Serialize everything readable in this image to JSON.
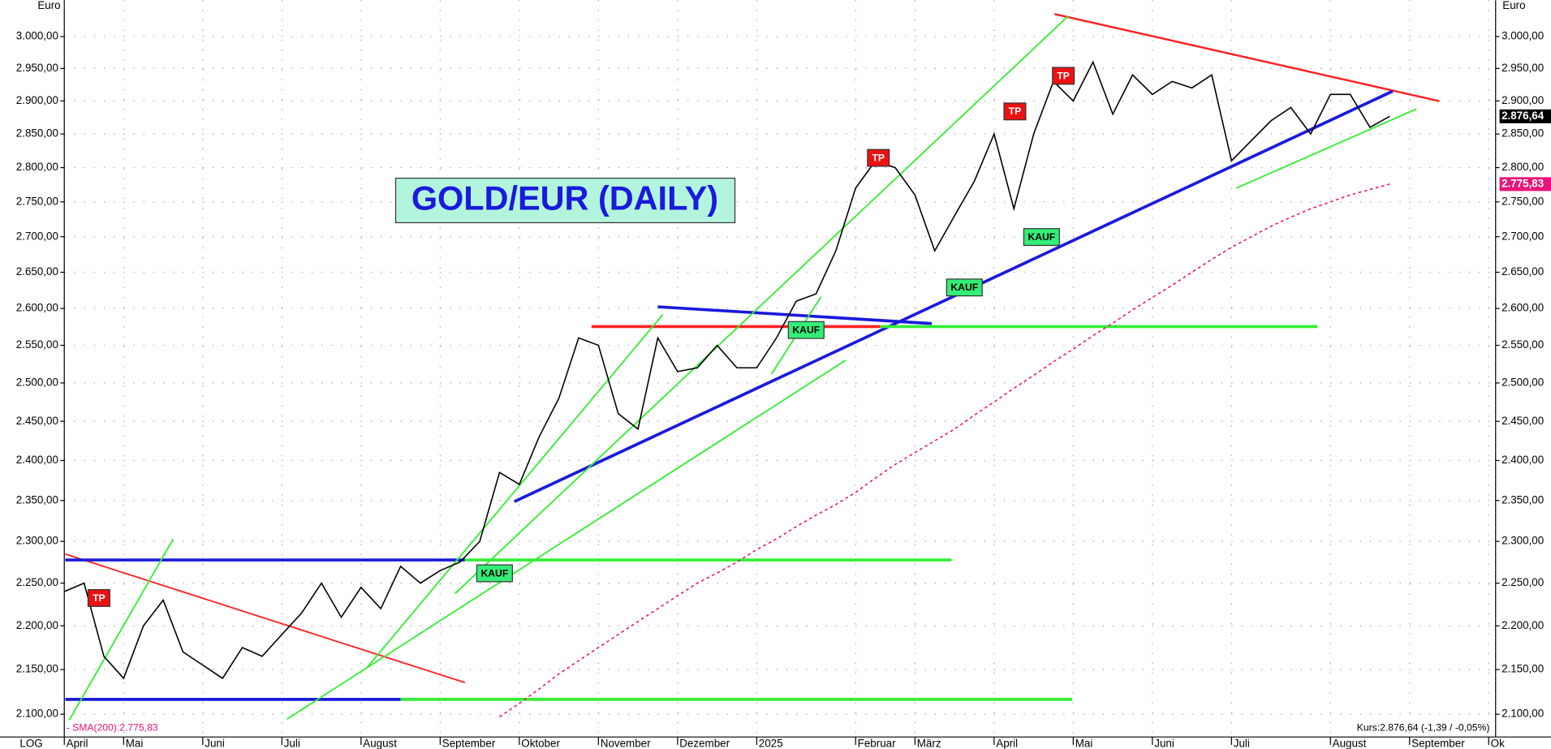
{
  "chart_data": {
    "type": "line",
    "title": "GOLD/EUR (DAILY)",
    "y_label": "Euro",
    "y2_label": "Euro",
    "scale_label": "LOG",
    "log_scale": true,
    "grid": true,
    "legend_text": "- SMA(200):2.775,83",
    "quote_text": "Kurs:2.876,64 (-1,39 / -0,05%)",
    "annotations": [
      "TP",
      "TP",
      "TP",
      "TP",
      "KAUF",
      "KAUF",
      "KAUF",
      "KAUF"
    ],
    "categories": [
      "April",
      null,
      null,
      "Mai",
      null,
      null,
      null,
      "Juni",
      null,
      null,
      null,
      "Juli",
      null,
      null,
      null,
      "August",
      null,
      null,
      null,
      "September",
      null,
      null,
      null,
      "Oktober",
      null,
      null,
      null,
      "November",
      null,
      null,
      null,
      "Dezember",
      null,
      null,
      null,
      "2025",
      null,
      null,
      null,
      null,
      "Februar",
      null,
      null,
      "März",
      null,
      null,
      null,
      "April",
      null,
      null,
      null,
      "Mai",
      null,
      null,
      null,
      "Juni",
      null,
      null,
      null,
      "Juli",
      null,
      null,
      null,
      null,
      "August",
      null,
      null,
      null,
      "September",
      null,
      null,
      null,
      "Ok"
    ],
    "series": [
      {
        "name": "GOLD/EUR",
        "color": "#000000",
        "values": [
          2240,
          2250,
          2165,
          2140,
          2200,
          2230,
          2170,
          2155,
          2140,
          2175,
          2165,
          2190,
          2215,
          2250,
          2210,
          2245,
          2220,
          2270,
          2250,
          2265,
          2275,
          2300,
          2385,
          2370,
          2430,
          2480,
          2560,
          2550,
          2460,
          2440,
          2560,
          2515,
          2520,
          2550,
          2520,
          2520,
          2560,
          2610,
          2620,
          2680,
          2770,
          2810,
          2800,
          2760,
          2680,
          2730,
          2780,
          2850,
          2740,
          2850,
          2930,
          2900,
          2960,
          2880,
          2940,
          2910,
          2930,
          2920,
          2940,
          2810,
          2840,
          2870,
          2890,
          2850,
          2910,
          2910,
          2860,
          2876.64,
          null,
          null,
          null,
          null,
          null
        ],
        "value_labels": [
          null,
          null,
          null,
          null,
          null,
          null,
          null,
          null,
          null,
          null,
          null,
          null,
          null,
          null,
          null,
          null,
          null,
          null,
          null,
          null,
          null,
          null,
          null,
          null,
          null,
          null,
          null,
          null,
          null,
          null,
          null,
          null,
          null,
          null,
          null,
          null,
          null,
          null,
          null,
          null,
          null,
          null,
          null,
          null,
          null,
          null,
          null,
          null,
          null,
          null,
          null,
          null,
          null,
          null,
          null,
          null,
          null,
          null,
          null,
          null,
          null,
          null,
          null,
          null,
          null,
          null,
          null,
          "2.876,64",
          null,
          null,
          null,
          null,
          null
        ]
      },
      {
        "name": "SMA(200)",
        "color": "#e8147a",
        "values": [
          null,
          null,
          null,
          null,
          null,
          null,
          null,
          null,
          null,
          null,
          null,
          null,
          null,
          null,
          null,
          null,
          null,
          null,
          null,
          null,
          null,
          null,
          2097,
          2112,
          2128,
          2145,
          2160,
          2175,
          2190,
          2205,
          2220,
          2235,
          2250,
          2262,
          2275,
          2290,
          2303,
          2318,
          2332,
          2345,
          2360,
          2378,
          2395,
          2410,
          2425,
          2440,
          2458,
          2475,
          2493,
          2510,
          2528,
          2545,
          2563,
          2580,
          2598,
          2615,
          2632,
          2650,
          2668,
          2685,
          2700,
          2715,
          2728,
          2740,
          2750,
          2760,
          2768,
          2775.83,
          null,
          null,
          null,
          null,
          null
        ],
        "value_labels": [
          null,
          null,
          null,
          null,
          null,
          null,
          null,
          null,
          null,
          null,
          null,
          null,
          null,
          null,
          null,
          null,
          null,
          null,
          null,
          null,
          null,
          null,
          null,
          null,
          null,
          null,
          null,
          null,
          null,
          null,
          null,
          null,
          null,
          null,
          null,
          null,
          null,
          null,
          null,
          null,
          null,
          null,
          null,
          null,
          null,
          null,
          null,
          null,
          null,
          null,
          null,
          null,
          null,
          null,
          null,
          null,
          null,
          null,
          null,
          null,
          null,
          null,
          null,
          null,
          null,
          null,
          null,
          "2.775,83",
          null,
          null,
          null,
          null,
          null
        ]
      }
    ],
    "ylim": [
      2075,
      3058
    ],
    "yticks": [
      {
        "value": 2100,
        "label": "2.100,00"
      },
      {
        "value": 2150,
        "label": "2.150,00"
      },
      {
        "value": 2200,
        "label": "2.200,00"
      },
      {
        "value": 2250,
        "label": "2.250,00"
      },
      {
        "value": 2300,
        "label": "2.300,00"
      },
      {
        "value": 2350,
        "label": "2.350,00"
      },
      {
        "value": 2400,
        "label": "2.400,00"
      },
      {
        "value": 2450,
        "label": "2.450,00"
      },
      {
        "value": 2500,
        "label": "2.500,00"
      },
      {
        "value": 2550,
        "label": "2.550,00"
      },
      {
        "value": 2600,
        "label": "2.600,00"
      },
      {
        "value": 2650,
        "label": "2.650,00"
      },
      {
        "value": 2700,
        "label": "2.700,00"
      },
      {
        "value": 2750,
        "label": "2.750,00"
      },
      {
        "value": 2800,
        "label": "2.800,00"
      },
      {
        "value": 2850,
        "label": "2.850,00"
      },
      {
        "value": 2900,
        "label": "2.900,00"
      },
      {
        "value": 2950,
        "label": "2.950,00"
      },
      {
        "value": 3000,
        "label": "3.000,00"
      }
    ]
  }
}
